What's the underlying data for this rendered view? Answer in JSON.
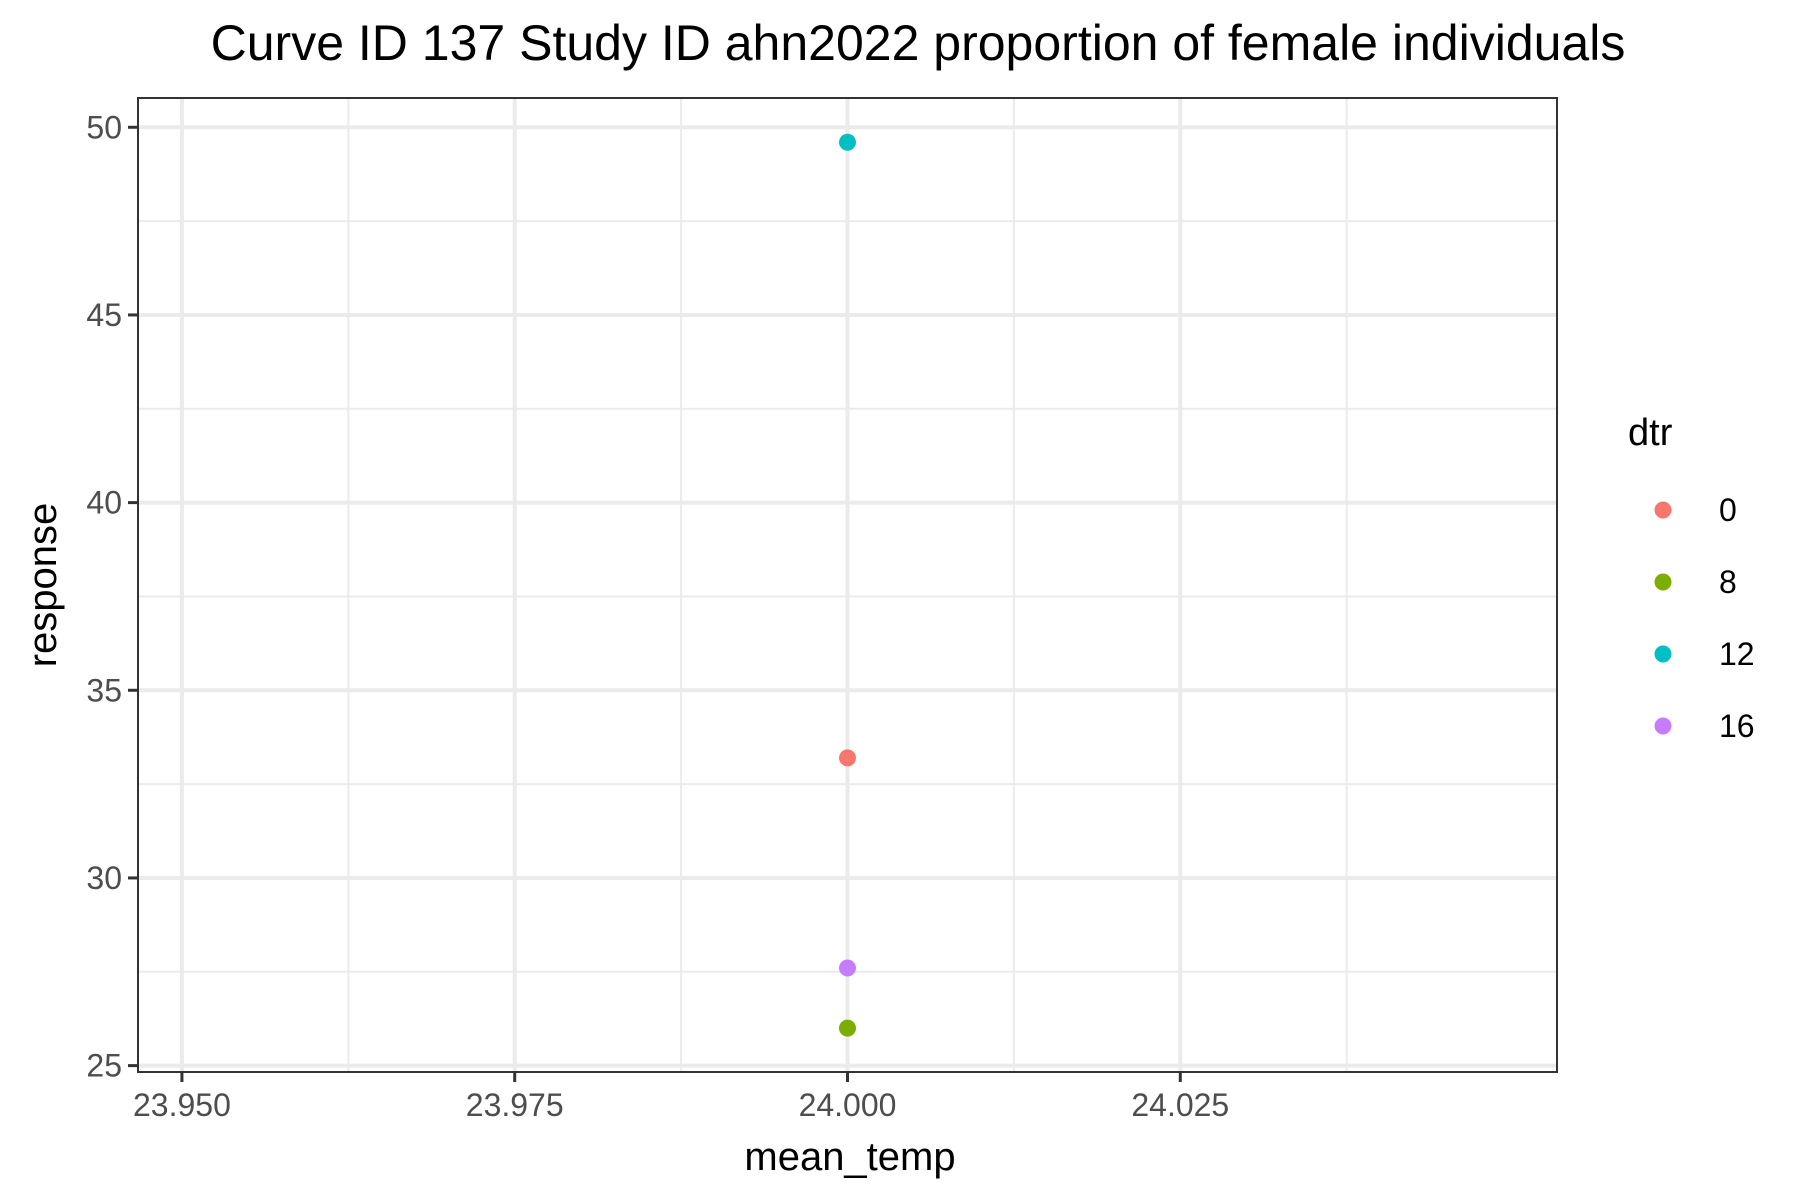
{
  "chart_data": {
    "type": "scatter",
    "title": "Curve ID 137 Study ID ahn2022 proportion of female individuals",
    "xlabel": "mean_temp",
    "ylabel": "response",
    "xlim": [
      23.95,
      24.05
    ],
    "ylim": [
      25,
      50
    ],
    "x_ticks": [
      23.95,
      23.975,
      24.0,
      24.025
    ],
    "x_tick_labels": [
      "23.950",
      "23.975",
      "24.000",
      "24.025"
    ],
    "y_ticks": [
      25,
      30,
      35,
      40,
      45,
      50
    ],
    "y_tick_labels": [
      "25",
      "30",
      "35",
      "40",
      "45",
      "50"
    ],
    "grid": true,
    "legend": {
      "title": "dtr",
      "placement": "right"
    },
    "series": [
      {
        "name": "0",
        "color": "#F8766D",
        "points": [
          {
            "x": 24.0,
            "y": 33.2
          }
        ]
      },
      {
        "name": "8",
        "color": "#7CAE00",
        "points": [
          {
            "x": 24.0,
            "y": 26.0
          }
        ]
      },
      {
        "name": "12",
        "color": "#00BFC4",
        "points": [
          {
            "x": 24.0,
            "y": 49.6
          }
        ]
      },
      {
        "name": "16",
        "color": "#C77CFF",
        "points": [
          {
            "x": 24.0,
            "y": 27.6
          }
        ]
      }
    ]
  }
}
